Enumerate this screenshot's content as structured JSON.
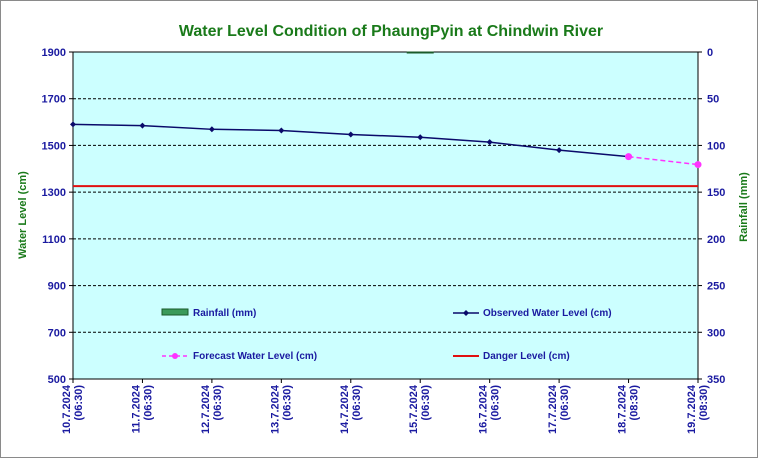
{
  "chart_data": {
    "type": "line",
    "title": "Water Level Condition of PhaungPyin at Chindwin River",
    "ylabel": "Water Level (cm)",
    "y2label": "Rainfall (mm)",
    "ylim": [
      500,
      1900
    ],
    "yticks": [
      500,
      700,
      900,
      1100,
      1300,
      1500,
      1700,
      1900
    ],
    "y2lim": [
      0,
      350
    ],
    "y2ticks": [
      0,
      50,
      100,
      150,
      200,
      250,
      300,
      350
    ],
    "y2_inverted": true,
    "grid": true,
    "categories": [
      [
        "10.7.2024",
        "(06:30)"
      ],
      [
        "11.7.2024",
        "(06:30)"
      ],
      [
        "12.7.2024",
        "(06:30)"
      ],
      [
        "13.7.2024",
        "(06:30)"
      ],
      [
        "14.7.2024",
        "(06:30)"
      ],
      [
        "15.7.2024",
        "(06:30)"
      ],
      [
        "16.7.2024",
        "(06:30)"
      ],
      [
        "17.7.2024",
        "(06:30)"
      ],
      [
        "18.7.2024",
        "(08:30)"
      ],
      [
        "19.7.2024",
        "(08:30)"
      ]
    ],
    "series": [
      {
        "name": "Rainfall (mm)",
        "kind": "bar",
        "axis": "right",
        "color": "#3a9a5a",
        "values": [
          0,
          0,
          0,
          0,
          0,
          1,
          0,
          0,
          0,
          0
        ]
      },
      {
        "name": "Observed Water Level (cm)",
        "kind": "line",
        "axis": "left",
        "color": "#0a0a6a",
        "values": [
          1590,
          1585,
          1569,
          1564,
          1547,
          1535,
          1514,
          1480,
          1452,
          null
        ]
      },
      {
        "name": "Forecast Water Level (cm)",
        "kind": "line-dashed",
        "axis": "left",
        "color": "#ff33ff",
        "values": [
          null,
          null,
          null,
          null,
          null,
          null,
          null,
          null,
          1452,
          1418
        ]
      },
      {
        "name": "Danger Level (cm)",
        "kind": "hline",
        "axis": "left",
        "color": "#e01010",
        "value": 1326
      }
    ],
    "legend": "inside-bottom"
  },
  "colors": {
    "plot_bg": "#ccffff",
    "axis_text": "#1a1aa0",
    "title_text": "#1a7a1a"
  }
}
